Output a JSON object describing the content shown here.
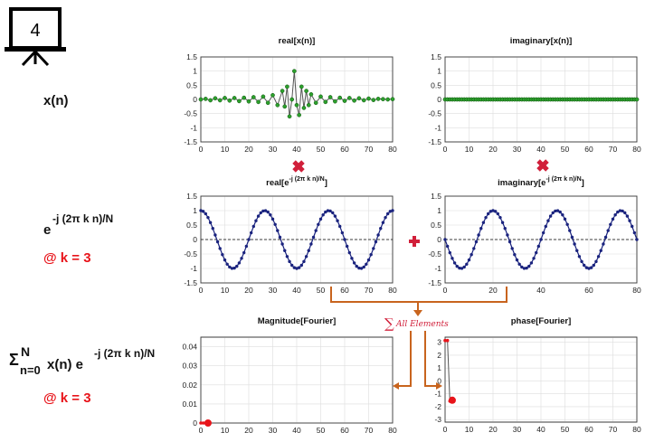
{
  "slide": {
    "number": "4"
  },
  "labels": {
    "xn": "x(n)",
    "kernel_base": "e",
    "kernel_exp": "-j (2π k n)/N",
    "k_first": "@ k = 3",
    "sum_sigma": "Σ",
    "sum_upper": "N",
    "sum_lower": "n=0",
    "sum_mid": "x(n) e",
    "sum_exp": "-j (2π k n)/N",
    "k_second": "@ k = 3",
    "all_elements": "All Elements",
    "sum_symbol": "∑"
  },
  "colors": {
    "green_marker": "#2ca02c",
    "blue_marker": "#1a237e",
    "red_marker": "#e8141a",
    "arrow": "#c8641e",
    "operator": "#d11f3a",
    "stem_line": "#555555",
    "grid": "#dddddd"
  },
  "chart_data": [
    {
      "id": "real-x",
      "type": "line",
      "title": "real[x(n)]",
      "xticks": [
        "0",
        "10",
        "20",
        "30",
        "40",
        "50",
        "60",
        "70",
        "80"
      ],
      "yticks": [
        "1.5",
        "1",
        "0.5",
        "0",
        "-0.5",
        "-1",
        "-1.5"
      ],
      "xlim": [
        0,
        80
      ],
      "ylim": [
        -1.5,
        1.5
      ],
      "grid": true,
      "series": [
        {
          "x": [
            0,
            2,
            4,
            6,
            8,
            10,
            12,
            14,
            16,
            18,
            20,
            22,
            24,
            26,
            28,
            30,
            32,
            34,
            35,
            36,
            37,
            38,
            39,
            40,
            41,
            42,
            43,
            44,
            45,
            46,
            48,
            50,
            52,
            54,
            56,
            58,
            60,
            62,
            64,
            66,
            68,
            70,
            72,
            74,
            76,
            78,
            80
          ],
          "y": [
            0.0,
            0.02,
            -0.03,
            0.04,
            -0.03,
            0.05,
            -0.04,
            0.05,
            -0.06,
            0.06,
            -0.07,
            0.08,
            -0.09,
            0.1,
            -0.12,
            0.15,
            -0.2,
            0.3,
            -0.25,
            0.45,
            -0.6,
            0.0,
            1.0,
            -0.2,
            -0.55,
            0.45,
            -0.3,
            0.3,
            -0.2,
            0.18,
            -0.12,
            0.1,
            -0.09,
            0.08,
            -0.07,
            0.06,
            -0.05,
            0.05,
            -0.04,
            0.04,
            -0.03,
            0.03,
            -0.02,
            0.02,
            0.01,
            0.0,
            0.01
          ]
        }
      ]
    },
    {
      "id": "imag-x",
      "type": "line",
      "title": "imaginary[x(n)]",
      "xticks": [
        "0",
        "10",
        "20",
        "30",
        "40",
        "50",
        "60",
        "70",
        "80"
      ],
      "yticks": [
        "1.5",
        "1",
        "0.5",
        "0",
        "-0.5",
        "-1",
        "-1.5"
      ],
      "xlim": [
        0,
        80
      ],
      "ylim": [
        -1.5,
        1.5
      ],
      "grid": true,
      "series": [
        {
          "x_from": 0,
          "x_to": 80,
          "x_step": 1,
          "constant": 0
        }
      ]
    },
    {
      "id": "real-kernel",
      "type": "line",
      "title_main": "real[e",
      "title_sup": "-j (2π k n)/N",
      "title_end": "]",
      "xticks": [
        "0",
        "10",
        "20",
        "30",
        "40",
        "50",
        "60",
        "70",
        "80"
      ],
      "yticks": [
        "1.5",
        "1",
        "0.5",
        "0",
        "-0.5",
        "-1",
        "-1.5"
      ],
      "xlim": [
        0,
        80
      ],
      "ylim": [
        -1.5,
        1.5
      ],
      "grid": true,
      "reference_line": 0,
      "series": [
        {
          "function": "cos",
          "k": 3,
          "N": 80,
          "x_from": 0,
          "x_to": 80,
          "x_step": 1
        }
      ]
    },
    {
      "id": "imag-kernel",
      "type": "line",
      "title_main": "imaginary[e",
      "title_sup": "-j (2π k n)/N",
      "title_end": "]",
      "xticks": [
        "0",
        "20",
        "40",
        "60",
        "80"
      ],
      "yticks": [
        "1.5",
        "1",
        "0.5",
        "0",
        "-0.5",
        "-1",
        "-1.5"
      ],
      "xlim": [
        0,
        80
      ],
      "ylim": [
        -1.5,
        1.5
      ],
      "grid": true,
      "reference_line": 0,
      "series": [
        {
          "function": "-sin",
          "k": 3,
          "N": 80,
          "x_from": 0,
          "x_to": 80,
          "x_step": 1
        }
      ]
    },
    {
      "id": "magnitude",
      "type": "scatter",
      "title": "Magnitude[Fourier]",
      "xticks": [
        "0",
        "10",
        "20",
        "30",
        "40",
        "50",
        "60",
        "70",
        "80"
      ],
      "yticks": [
        "0.04",
        "0.03",
        "0.02",
        "0.01",
        "0"
      ],
      "xlim": [
        0,
        80
      ],
      "ylim": [
        0,
        0.045
      ],
      "grid": true,
      "series": [
        {
          "name": "history",
          "x": [
            0,
            1,
            2
          ],
          "y": [
            0,
            0,
            0
          ]
        },
        {
          "name": "current",
          "x": [
            3
          ],
          "y": [
            0
          ]
        }
      ]
    },
    {
      "id": "phase",
      "type": "line",
      "title": "phase[Fourier]",
      "xticks": [
        "0",
        "10",
        "20",
        "30",
        "40",
        "50",
        "60",
        "70",
        "80"
      ],
      "yticks": [
        "3",
        "2",
        "1",
        "0",
        "-1",
        "-2",
        "-3"
      ],
      "xlim": [
        0,
        80
      ],
      "ylim": [
        -3.2,
        3.4
      ],
      "grid": true,
      "series": [
        {
          "name": "history",
          "x": [
            0,
            1,
            2
          ],
          "y": [
            3.14,
            3.14,
            -1.57
          ]
        },
        {
          "name": "current",
          "x": [
            3
          ],
          "y": [
            -1.5
          ]
        }
      ]
    }
  ]
}
